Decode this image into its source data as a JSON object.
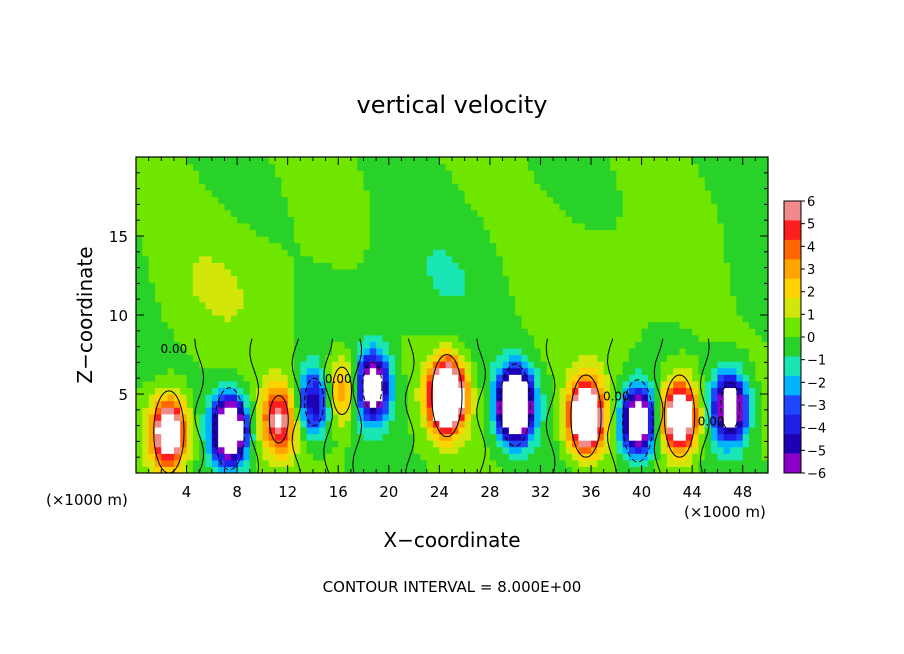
{
  "chart_data": {
    "type": "heatmap",
    "title": "vertical velocity",
    "xlabel": "X−coordinate",
    "ylabel": "Z−coordinate",
    "x_unit_left": "(×1000 m)",
    "x_unit_right": "(×1000 m)",
    "footer": "CONTOUR INTERVAL = 8.000E+00",
    "xlim": [
      0,
      50
    ],
    "ylim": [
      0,
      20
    ],
    "x_ticks": [
      4,
      8,
      12,
      16,
      20,
      24,
      28,
      32,
      36,
      40,
      44,
      48
    ],
    "x_tick_labels": [
      "4",
      "8",
      "12",
      "16",
      "20",
      "24",
      "28",
      "32",
      "36",
      "40",
      "44",
      "48"
    ],
    "y_ticks": [
      5,
      10,
      15
    ],
    "y_tick_labels": [
      "5",
      "10",
      "15"
    ],
    "colorbar": {
      "min": -6,
      "max": 6,
      "tick_labels": [
        "6",
        "5",
        "4",
        "3",
        "2",
        "1",
        "0",
        "−1",
        "−2",
        "−3",
        "−4",
        "−5",
        "−6"
      ],
      "colors": [
        "#f08a8a",
        "#ff1e1e",
        "#ff6600",
        "#ffa500",
        "#ffd200",
        "#d2e60a",
        "#6ee600",
        "#28d228",
        "#19e6b4",
        "#00b4ff",
        "#1e46ff",
        "#1e1ee6",
        "#1e00b4",
        "#8c00c8"
      ]
    },
    "contour_labels": [
      {
        "x": 3,
        "z": 7.6,
        "text": "0.00"
      },
      {
        "x": 16,
        "z": 5.7,
        "text": "0.00"
      },
      {
        "x": 38,
        "z": 4.6,
        "text": "0.00"
      },
      {
        "x": 45.5,
        "z": 3.0,
        "text": "0.00"
      }
    ],
    "updrafts": [
      {
        "x": 2.6,
        "z": 2.6,
        "w": 9
      },
      {
        "x": 11.3,
        "z": 3.4,
        "w": 6
      },
      {
        "x": 16.3,
        "z": 5.2,
        "w": 4
      },
      {
        "x": 24.6,
        "z": 4.9,
        "w": 13
      },
      {
        "x": 35.6,
        "z": 3.6,
        "w": 11
      },
      {
        "x": 43.0,
        "z": 3.6,
        "w": 10
      }
    ],
    "downdrafts": [
      {
        "x": 7.4,
        "z": 2.8,
        "w": -10
      },
      {
        "x": 14.1,
        "z": 4.5,
        "w": -5
      },
      {
        "x": 18.7,
        "z": 5.5,
        "w": -8
      },
      {
        "x": 30.0,
        "z": 4.3,
        "w": -12
      },
      {
        "x": 39.7,
        "z": 3.3,
        "w": -9
      },
      {
        "x": 47.0,
        "z": 4.2,
        "w": -8
      }
    ]
  }
}
